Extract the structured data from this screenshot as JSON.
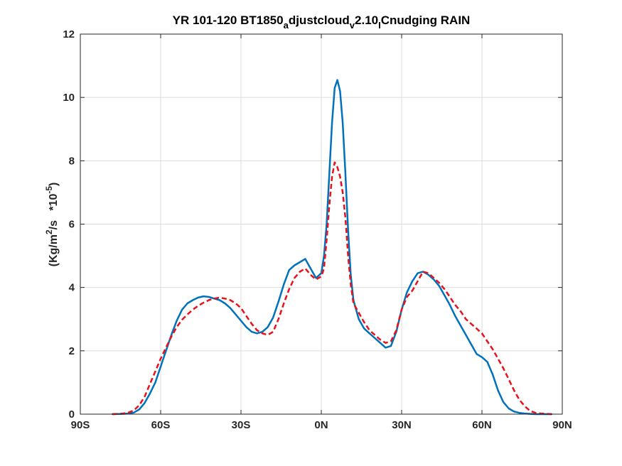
{
  "chart_data": {
    "type": "line",
    "title_parts": {
      "a": "YR 101-120 BT1850",
      "b": "a",
      "c": "djustcloud",
      "d": "v",
      "e": "2.10",
      "f": "I",
      "g": "Cnudging RAIN"
    },
    "ylabel_parts": {
      "a": "(Kg/m",
      "b": "2",
      "c": "/s   *10",
      "d": "-5",
      "e": ")"
    },
    "xlim": [
      -90,
      90
    ],
    "ylim": [
      0,
      12
    ],
    "xticks": [
      -90,
      -60,
      -30,
      0,
      30,
      60,
      90
    ],
    "xtick_labels": [
      "90S",
      "60S",
      "30S",
      "0N",
      "30N",
      "60N",
      "90N"
    ],
    "yticks": [
      0,
      2,
      4,
      6,
      8,
      10,
      12
    ],
    "ytick_labels": [
      "0",
      "2",
      "4",
      "6",
      "8",
      "10",
      "12"
    ],
    "grid": true,
    "series": [
      {
        "color": "#0072BD",
        "style": "solid",
        "x": [
          -78,
          -74,
          -72,
          -70,
          -68,
          -66,
          -64,
          -62,
          -60,
          -58,
          -56,
          -54,
          -52,
          -50,
          -48,
          -46,
          -44,
          -42,
          -40,
          -38,
          -36,
          -34,
          -32,
          -30,
          -28,
          -26,
          -24,
          -22,
          -20,
          -18,
          -16,
          -14,
          -12,
          -10,
          -8,
          -6,
          -4,
          -2,
          0,
          1,
          2,
          3,
          4,
          5,
          6,
          7,
          8,
          9,
          10,
          11,
          12,
          14,
          16,
          18,
          20,
          22,
          24,
          26,
          28,
          30,
          32,
          34,
          36,
          38,
          40,
          42,
          44,
          46,
          48,
          50,
          52,
          54,
          56,
          58,
          60,
          62,
          64,
          66,
          68,
          70,
          72,
          74,
          76,
          78,
          80,
          82,
          84,
          86
        ],
        "y": [
          0,
          0.01,
          0.02,
          0.05,
          0.15,
          0.35,
          0.65,
          1.0,
          1.5,
          2.0,
          2.5,
          2.95,
          3.3,
          3.5,
          3.6,
          3.68,
          3.72,
          3.7,
          3.65,
          3.6,
          3.5,
          3.35,
          3.15,
          2.95,
          2.75,
          2.6,
          2.55,
          2.6,
          2.75,
          3.05,
          3.55,
          4.1,
          4.55,
          4.7,
          4.8,
          4.9,
          4.6,
          4.3,
          4.45,
          5.0,
          6.0,
          7.6,
          9.2,
          10.3,
          10.55,
          10.2,
          9.2,
          7.6,
          5.8,
          4.4,
          3.6,
          3.0,
          2.7,
          2.55,
          2.4,
          2.25,
          2.1,
          2.15,
          2.6,
          3.3,
          3.85,
          4.2,
          4.45,
          4.5,
          4.4,
          4.25,
          4.05,
          3.75,
          3.45,
          3.1,
          2.8,
          2.5,
          2.2,
          1.9,
          1.8,
          1.65,
          1.25,
          0.75,
          0.38,
          0.18,
          0.08,
          0.04,
          0.02,
          0.01,
          0.0,
          0.0,
          0.0,
          0.0
        ]
      },
      {
        "color": "#E8121A",
        "style": "dashed",
        "x": [
          -78,
          -74,
          -72,
          -70,
          -68,
          -66,
          -64,
          -62,
          -60,
          -58,
          -56,
          -54,
          -52,
          -50,
          -48,
          -46,
          -44,
          -42,
          -40,
          -38,
          -36,
          -34,
          -32,
          -30,
          -28,
          -26,
          -24,
          -22,
          -20,
          -18,
          -16,
          -14,
          -12,
          -10,
          -8,
          -6,
          -4,
          -2,
          0,
          1,
          2,
          3,
          4,
          5,
          6,
          7,
          8,
          9,
          10,
          11,
          12,
          14,
          16,
          18,
          20,
          22,
          24,
          26,
          28,
          30,
          32,
          34,
          36,
          38,
          40,
          42,
          44,
          46,
          48,
          50,
          52,
          54,
          56,
          58,
          60,
          62,
          64,
          66,
          68,
          70,
          72,
          74,
          76,
          78,
          80,
          82,
          84,
          86
        ],
        "y": [
          0,
          0.02,
          0.05,
          0.12,
          0.28,
          0.55,
          0.95,
          1.35,
          1.75,
          2.1,
          2.45,
          2.75,
          2.98,
          3.15,
          3.3,
          3.42,
          3.52,
          3.6,
          3.65,
          3.68,
          3.65,
          3.6,
          3.5,
          3.35,
          3.1,
          2.85,
          2.65,
          2.55,
          2.5,
          2.6,
          3.0,
          3.5,
          3.95,
          4.3,
          4.5,
          4.6,
          4.4,
          4.25,
          4.35,
          4.6,
          5.5,
          6.6,
          7.5,
          7.95,
          7.8,
          7.5,
          7.0,
          6.2,
          5.0,
          4.1,
          3.5,
          3.2,
          2.9,
          2.65,
          2.5,
          2.35,
          2.25,
          2.3,
          2.65,
          3.3,
          3.7,
          3.9,
          4.2,
          4.5,
          4.45,
          4.3,
          4.15,
          3.95,
          3.7,
          3.45,
          3.25,
          3.0,
          2.85,
          2.7,
          2.55,
          2.3,
          2.05,
          1.75,
          1.45,
          1.1,
          0.75,
          0.45,
          0.25,
          0.1,
          0.04,
          0.02,
          0.01,
          0.0
        ]
      }
    ]
  }
}
